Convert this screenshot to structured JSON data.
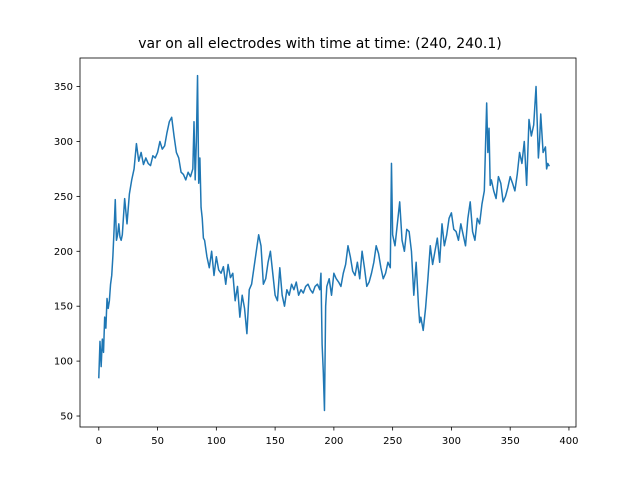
{
  "figure": {
    "title": "var on all electrodes with time at time: (240, 240.1)"
  },
  "chart_data": {
    "type": "line",
    "title": "var on all electrodes with time at time: (240, 240.1)",
    "xlabel": "",
    "ylabel": "",
    "xlim": [
      -16,
      406
    ],
    "ylim": [
      40,
      376
    ],
    "xticks": [
      0,
      50,
      100,
      150,
      200,
      250,
      300,
      350,
      400
    ],
    "yticks": [
      50,
      100,
      150,
      200,
      250,
      300,
      350
    ],
    "grid": false,
    "line_color": "#1f77b4",
    "series": [
      {
        "name": "",
        "x": [
          0,
          1,
          2,
          3,
          4,
          5,
          6,
          7,
          8,
          9,
          10,
          11,
          12,
          13,
          14,
          15,
          16,
          17,
          18,
          19,
          20,
          22,
          24,
          26,
          28,
          30,
          32,
          34,
          36,
          38,
          40,
          42,
          44,
          46,
          48,
          50,
          52,
          54,
          56,
          58,
          60,
          62,
          64,
          66,
          68,
          70,
          72,
          74,
          76,
          78,
          80,
          81,
          82,
          83,
          84,
          85,
          86,
          87,
          88,
          89,
          90,
          92,
          94,
          96,
          98,
          100,
          102,
          104,
          106,
          108,
          110,
          112,
          114,
          116,
          118,
          120,
          122,
          124,
          126,
          128,
          130,
          132,
          134,
          136,
          138,
          140,
          142,
          144,
          146,
          148,
          150,
          152,
          154,
          156,
          158,
          160,
          162,
          164,
          166,
          168,
          170,
          172,
          174,
          176,
          178,
          180,
          182,
          184,
          186,
          188,
          189,
          190,
          191,
          192,
          193,
          194,
          196,
          198,
          200,
          202,
          204,
          206,
          208,
          210,
          212,
          214,
          216,
          218,
          220,
          222,
          224,
          226,
          228,
          230,
          232,
          234,
          236,
          238,
          240,
          242,
          244,
          246,
          248,
          249,
          250,
          252,
          254,
          256,
          258,
          260,
          262,
          264,
          266,
          268,
          270,
          272,
          273,
          274,
          276,
          278,
          280,
          282,
          284,
          286,
          288,
          290,
          292,
          294,
          296,
          298,
          300,
          302,
          304,
          306,
          308,
          310,
          312,
          314,
          316,
          318,
          320,
          322,
          324,
          326,
          328,
          330,
          331,
          332,
          333,
          334,
          336,
          338,
          340,
          342,
          344,
          346,
          348,
          350,
          352,
          354,
          356,
          358,
          360,
          362,
          364,
          366,
          368,
          370,
          372,
          374,
          375,
          376,
          378,
          380,
          381,
          382,
          383
        ],
        "y": [
          85,
          118,
          95,
          120,
          108,
          140,
          130,
          157,
          148,
          155,
          170,
          178,
          196,
          220,
          247,
          210,
          215,
          225,
          213,
          210,
          215,
          248,
          225,
          252,
          265,
          275,
          298,
          282,
          290,
          279,
          285,
          280,
          278,
          287,
          285,
          290,
          300,
          293,
          296,
          308,
          318,
          322,
          305,
          290,
          285,
          272,
          270,
          265,
          272,
          268,
          275,
          318,
          265,
          300,
          360,
          262,
          285,
          240,
          230,
          212,
          210,
          195,
          185,
          200,
          178,
          195,
          183,
          180,
          186,
          170,
          188,
          176,
          180,
          155,
          168,
          140,
          160,
          148,
          125,
          165,
          170,
          185,
          200,
          215,
          205,
          170,
          175,
          190,
          200,
          180,
          160,
          155,
          185,
          160,
          150,
          165,
          160,
          170,
          165,
          172,
          160,
          165,
          162,
          168,
          170,
          165,
          162,
          168,
          170,
          165,
          180,
          115,
          90,
          55,
          150,
          168,
          175,
          160,
          180,
          175,
          172,
          168,
          180,
          188,
          205,
          195,
          182,
          178,
          190,
          175,
          200,
          185,
          168,
          172,
          180,
          190,
          205,
          198,
          185,
          175,
          180,
          190,
          185,
          280,
          215,
          205,
          225,
          245,
          210,
          200,
          220,
          218,
          200,
          160,
          190,
          150,
          135,
          140,
          128,
          148,
          175,
          205,
          188,
          200,
          212,
          190,
          225,
          205,
          215,
          230,
          235,
          220,
          218,
          210,
          225,
          215,
          205,
          230,
          245,
          218,
          210,
          230,
          225,
          243,
          255,
          335,
          290,
          312,
          260,
          265,
          255,
          248,
          268,
          262,
          245,
          250,
          258,
          268,
          262,
          255,
          270,
          290,
          280,
          300,
          260,
          320,
          305,
          315,
          350,
          285,
          300,
          325,
          290,
          295,
          275,
          280,
          278
        ]
      }
    ]
  }
}
